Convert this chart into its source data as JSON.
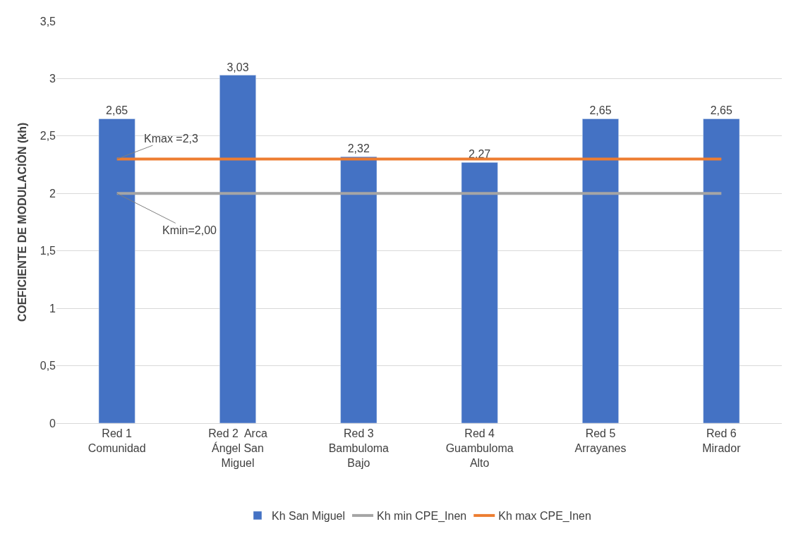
{
  "chart_data": {
    "type": "bar",
    "ylabel": "COEFICIENTE DE MODULACIÒN (kh)",
    "categories": [
      "Red 1 Comunidad",
      "Red 2  Arca Ángel San Miguel",
      "Red 3 Bambuloma Bajo",
      "Red 4 Guambuloma Alto",
      "Red 5 Arrayanes",
      "Red 6 Mirador"
    ],
    "series": [
      {
        "name": "Kh San Miguel",
        "color": "#4472c4",
        "values": [
          2.65,
          3.03,
          2.32,
          2.27,
          2.65,
          2.65
        ],
        "value_labels": [
          "2,65",
          "3,03",
          "2,32",
          "2,27",
          "2,65",
          "2,65"
        ]
      },
      {
        "name": "Kh min CPE_Inen",
        "type": "line",
        "color": "#a5a5a5",
        "values": [
          2,
          2,
          2,
          2,
          2,
          2
        ]
      },
      {
        "name": "Kh max CPE_Inen",
        "type": "line",
        "color": "#ed7d31",
        "values": [
          2.3,
          2.3,
          2.3,
          2.3,
          2.3,
          2.3
        ]
      }
    ],
    "ylim": [
      0,
      3.5
    ],
    "yticks": [
      0,
      {
        "value": 0.5,
        "label": "0,5"
      },
      1,
      {
        "value": 1.5,
        "label": "1,5"
      },
      2,
      {
        "value": 2.5,
        "label": "2,5"
      },
      3,
      {
        "value": 3.5,
        "label": "3,5"
      }
    ],
    "annotations": [
      {
        "text": "Kmax =2,3",
        "x": "Red 1 Comunidad",
        "y": 2.3
      },
      {
        "text": "Kmin=2,00",
        "x": "Red 1 Comunidad",
        "y": 2
      }
    ],
    "grid": "y",
    "legend": "bottom",
    "marker": "none"
  }
}
